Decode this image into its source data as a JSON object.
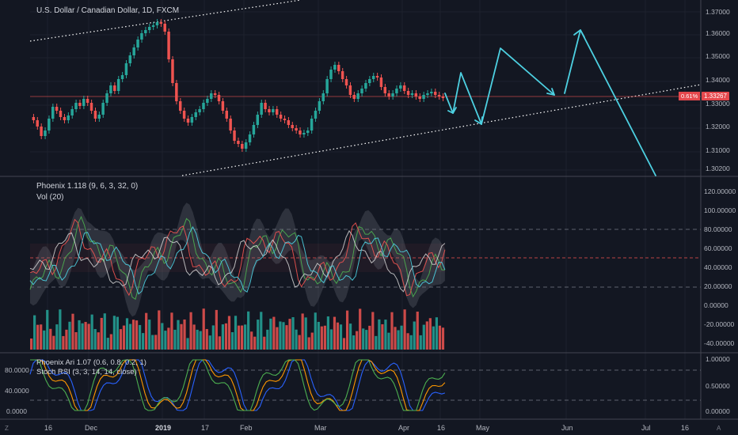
{
  "header": {
    "symbol_title": "U.S. Dollar / Canadian Dollar, 1D, FXCM"
  },
  "price_panel": {
    "axis_labels": [
      "1.37000",
      "1.36000",
      "1.35000",
      "1.34000",
      "1.33000",
      "1.32000",
      "1.31000",
      "1.30200"
    ],
    "last_price": "1.33267",
    "change_pct": "0.61%",
    "colors": {
      "up": "#26a69a",
      "down": "#ef5350",
      "projection": "#4dd0e1",
      "trendline": "#ffffff",
      "price_line": "#ef5350"
    }
  },
  "osc_panel": {
    "title": "Phoenix 1.118 (9, 6, 3, 32, 0)",
    "vol_title": "Vol (20)",
    "axis_labels": [
      "120.00000",
      "100.00000",
      "80.00000",
      "60.00000",
      "40.00000",
      "20.00000",
      "0.00000",
      "-20.00000",
      "-40.00000"
    ]
  },
  "stoch_panel": {
    "title1": "Phoenix Ari 1.07 (0.6, 0.8, 0.2, 1)",
    "title2": "Stoch RSI (3, 3, 14, 14, close)",
    "left_axis": [
      "80.0000",
      "40.0000",
      "0.0000"
    ],
    "right_axis": [
      "1.00000",
      "0.50000",
      "0.00000"
    ]
  },
  "time_axis": [
    "16",
    "Dec",
    "2019",
    "17",
    "Feb",
    "Mar",
    "Apr",
    "16",
    "May",
    "Jun",
    "Jul",
    "16"
  ],
  "corner_left": "Z",
  "corner_right": "A"
}
